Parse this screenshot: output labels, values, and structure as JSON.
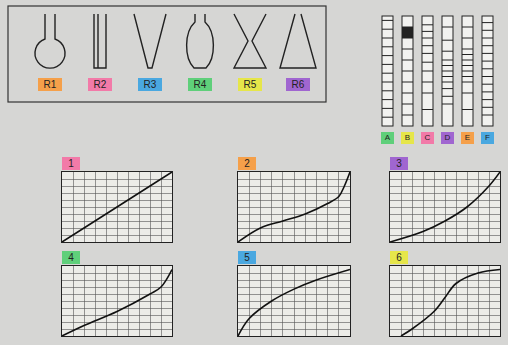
{
  "containers": {
    "items": [
      {
        "label": "R1",
        "color": "#f5a04a",
        "shape": "flask"
      },
      {
        "label": "R2",
        "color": "#f27aa8",
        "shape": "cylinder"
      },
      {
        "label": "R3",
        "color": "#4aa8e0",
        "shape": "vcone"
      },
      {
        "label": "R4",
        "color": "#5fcf7a",
        "shape": "oval"
      },
      {
        "label": "R5",
        "color": "#e6e64a",
        "shape": "hourglass"
      },
      {
        "label": "R6",
        "color": "#a066d0",
        "shape": "cone"
      }
    ]
  },
  "columns": {
    "ylim": [
      0,
      10
    ],
    "items": [
      {
        "label": "A",
        "color": "#5fcf7a",
        "levels": [
          0.8,
          1.6,
          2.4,
          3.2,
          4,
          4.8,
          5.6,
          6.4,
          7.2,
          8,
          8.8,
          9.6
        ]
      },
      {
        "label": "B",
        "color": "#e6e64a",
        "levels": [
          1,
          2,
          3,
          4,
          5,
          6,
          7,
          8,
          9
        ],
        "filled": [
          8,
          9
        ]
      },
      {
        "label": "C",
        "color": "#f27aa8",
        "levels": [
          1.5,
          3,
          4,
          5,
          5.8,
          6.6,
          7.3,
          8,
          8.6,
          9.2
        ]
      },
      {
        "label": "D",
        "color": "#a066d0",
        "levels": [
          2,
          2.7,
          3.4,
          4,
          4.5,
          5,
          5.5,
          6,
          6.8,
          7.8,
          9
        ]
      },
      {
        "label": "E",
        "color": "#f5a04a",
        "levels": [
          1.5,
          3,
          4,
          4.5,
          5,
          5.5,
          6,
          6.5,
          7,
          8,
          9
        ]
      },
      {
        "label": "F",
        "color": "#4aa8e0",
        "levels": [
          1,
          1.7,
          2.4,
          3.1,
          3.8,
          4.5,
          5.2,
          5.9,
          6.6,
          7.3,
          8,
          8.7,
          9.4
        ]
      }
    ]
  },
  "graph_tags": [
    {
      "color": "#f27aa8"
    },
    {
      "color": "#f5a04a"
    },
    {
      "color": "#a066d0"
    },
    {
      "color": "#5fcf7a"
    },
    {
      "color": "#4aa8e0"
    },
    {
      "color": "#e6e64a"
    }
  ],
  "chart_data": [
    {
      "type": "line",
      "title": "1",
      "x": [
        0,
        2,
        4,
        6,
        8,
        10
      ],
      "values": [
        0,
        2,
        4,
        6,
        8,
        10
      ],
      "xlim": [
        0,
        10
      ],
      "ylim": [
        0,
        10
      ],
      "xticks": [
        0,
        1,
        2,
        3,
        4,
        5,
        6,
        7,
        8,
        9,
        10
      ],
      "yticks": [
        0,
        1,
        2,
        3,
        4,
        5,
        6,
        7,
        8,
        9,
        10
      ],
      "grid": true,
      "tick_labels": false
    },
    {
      "type": "line",
      "title": "2",
      "x": [
        0,
        2,
        4,
        6,
        8,
        9,
        9.5,
        10
      ],
      "values": [
        0,
        2,
        3,
        4,
        5.5,
        6.5,
        8,
        10
      ],
      "xlim": [
        0,
        10
      ],
      "ylim": [
        0,
        10
      ],
      "xticks": [
        0,
        1,
        2,
        3,
        4,
        5,
        6,
        7,
        8,
        9,
        10
      ],
      "yticks": [
        0,
        1,
        2,
        3,
        4,
        5,
        6,
        7,
        8,
        9,
        10
      ],
      "grid": true,
      "tick_labels": false
    },
    {
      "type": "line",
      "title": "3",
      "x": [
        0,
        3,
        5,
        7,
        9,
        10
      ],
      "values": [
        0,
        1.5,
        3,
        5,
        8,
        10
      ],
      "xlim": [
        0,
        10
      ],
      "ylim": [
        0,
        10
      ],
      "xticks": [
        0,
        1,
        2,
        3,
        4,
        5,
        6,
        7,
        8,
        9,
        10
      ],
      "yticks": [
        0,
        1,
        2,
        3,
        4,
        5,
        6,
        7,
        8,
        9,
        10
      ],
      "grid": true,
      "tick_labels": false
    },
    {
      "type": "line",
      "title": "4",
      "x": [
        0,
        2,
        5,
        8,
        9,
        10
      ],
      "values": [
        0,
        1.5,
        3.5,
        6,
        7,
        9.5
      ],
      "xlim": [
        0,
        10
      ],
      "ylim": [
        0,
        10
      ],
      "xticks": [
        0,
        1,
        2,
        3,
        4,
        5,
        6,
        7,
        8,
        9,
        10
      ],
      "yticks": [
        0,
        1,
        2,
        3,
        4,
        5,
        6,
        7,
        8,
        9,
        10
      ],
      "grid": true,
      "tick_labels": false
    },
    {
      "type": "line",
      "title": "5",
      "x": [
        0,
        1,
        3,
        5,
        7,
        10
      ],
      "values": [
        0,
        2.5,
        5,
        6.7,
        8,
        9.5
      ],
      "xlim": [
        0,
        10
      ],
      "ylim": [
        0,
        10
      ],
      "xticks": [
        0,
        1,
        2,
        3,
        4,
        5,
        6,
        7,
        8,
        9,
        10
      ],
      "yticks": [
        0,
        1,
        2,
        3,
        4,
        5,
        6,
        7,
        8,
        9,
        10
      ],
      "grid": true,
      "tick_labels": false
    },
    {
      "type": "line",
      "title": "6",
      "x": [
        1,
        2,
        4,
        5,
        6,
        8,
        10
      ],
      "values": [
        0,
        1,
        3.5,
        5.5,
        7.5,
        9,
        9.5
      ],
      "xlim": [
        0,
        10
      ],
      "ylim": [
        0,
        10
      ],
      "xticks": [
        0,
        1,
        2,
        3,
        4,
        5,
        6,
        7,
        8,
        9,
        10
      ],
      "yticks": [
        0,
        1,
        2,
        3,
        4,
        5,
        6,
        7,
        8,
        9,
        10
      ],
      "grid": true,
      "tick_labels": false
    }
  ]
}
